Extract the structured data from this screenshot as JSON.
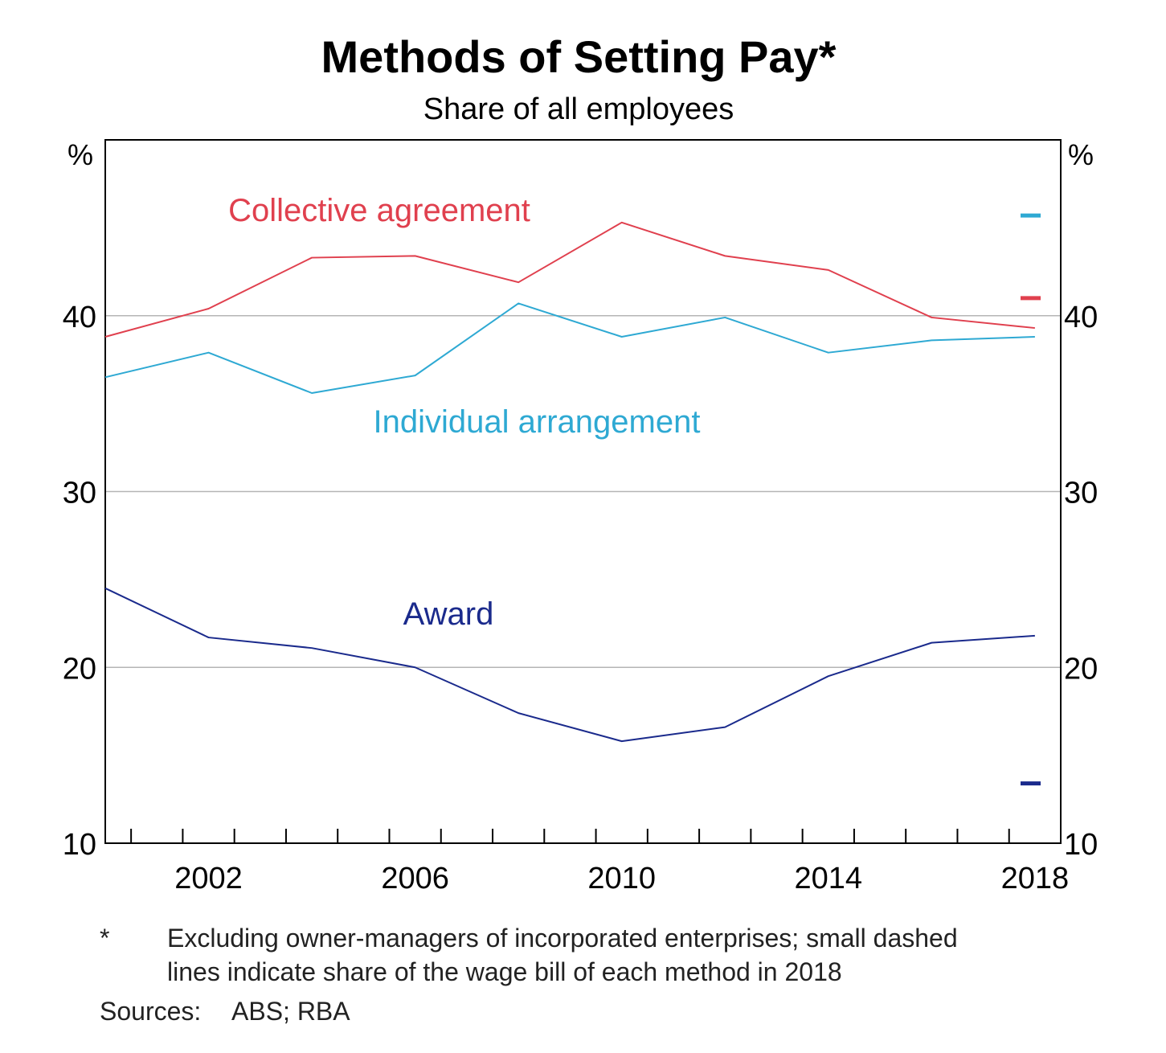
{
  "chart_data": {
    "type": "line",
    "title": "Methods of Setting Pay*",
    "subtitle": "Share of all employees",
    "y_unit_left": "%",
    "y_unit_right": "%",
    "ylim": [
      10,
      50
    ],
    "yticks": [
      10,
      20,
      30,
      40
    ],
    "xlim": [
      2000,
      2018.5
    ],
    "xtick_labels": [
      2002,
      2006,
      2010,
      2014,
      2018
    ],
    "xminor_ticks": [
      2001,
      2002,
      2003,
      2004,
      2005,
      2006,
      2007,
      2008,
      2009,
      2010,
      2011,
      2012,
      2013,
      2014,
      2015,
      2016,
      2017,
      2018
    ],
    "grid": "horizontal",
    "series": [
      {
        "name": "Collective agreement",
        "color": "#e0404e",
        "x": [
          2000,
          2002,
          2004,
          2006,
          2008,
          2010,
          2012,
          2014,
          2016,
          2018
        ],
        "y": [
          38.8,
          40.4,
          43.3,
          43.4,
          41.9,
          45.3,
          43.4,
          42.6,
          39.9,
          39.3
        ],
        "wage_bill_2018": 41.0
      },
      {
        "name": "Individual arrangement",
        "color": "#2ea9d3",
        "x": [
          2000,
          2002,
          2004,
          2006,
          2008,
          2010,
          2012,
          2014,
          2016,
          2018
        ],
        "y": [
          36.5,
          37.9,
          35.6,
          36.6,
          40.7,
          38.8,
          39.9,
          37.9,
          38.6,
          38.8
        ],
        "wage_bill_2018": 45.7
      },
      {
        "name": "Award",
        "color": "#1a2a8c",
        "x": [
          2000,
          2002,
          2004,
          2006,
          2008,
          2010,
          2012,
          2014,
          2016,
          2018
        ],
        "y": [
          24.5,
          21.7,
          21.1,
          20.0,
          17.4,
          15.8,
          16.6,
          19.5,
          21.4,
          21.8
        ],
        "wage_bill_2018": 13.4
      }
    ]
  },
  "footnote": {
    "marker": "*",
    "line1": "Excluding owner-managers of incorporated enterprises; small dashed",
    "line2": "lines indicate share of the wage bill of each method in 2018"
  },
  "sources": {
    "label": "Sources:",
    "text": "ABS; RBA"
  }
}
